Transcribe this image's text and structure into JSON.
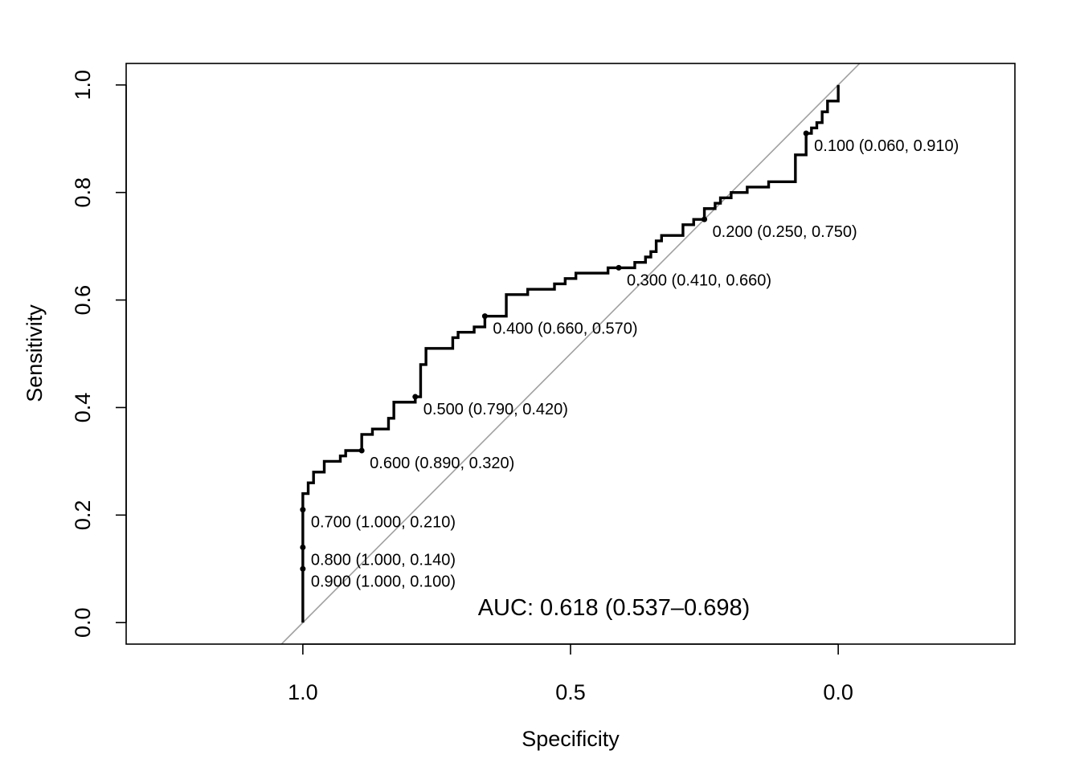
{
  "chart_data": {
    "type": "line",
    "title": "",
    "xlabel": "Specificity",
    "ylabel": "Sensitivity",
    "xlim": [
      1.33,
      -0.33
    ],
    "ylim": [
      -0.04,
      1.04
    ],
    "x_reversed": true,
    "x_ticks": [
      1.0,
      0.5,
      0.0
    ],
    "x_tick_labels": [
      "1.0",
      "0.5",
      "0.0"
    ],
    "y_ticks": [
      0.0,
      0.2,
      0.4,
      0.6,
      0.8,
      1.0
    ],
    "y_tick_labels": [
      "0.0",
      "0.2",
      "0.4",
      "0.6",
      "0.8",
      "1.0"
    ],
    "grid": false,
    "legend": "none",
    "colors": {
      "curve": "#000000",
      "reference": "#a0a0a0"
    },
    "reference_line": {
      "from": [
        1.0,
        0.0
      ],
      "to": [
        0.0,
        1.0
      ]
    },
    "series": [
      {
        "specificity": [
          1.0,
          1.0,
          0.99,
          0.99,
          0.98,
          0.98,
          0.96,
          0.96,
          0.93,
          0.93,
          0.92,
          0.92,
          0.89,
          0.89,
          0.87,
          0.87,
          0.84,
          0.84,
          0.83,
          0.83,
          0.79,
          0.79,
          0.78,
          0.78,
          0.77,
          0.77,
          0.72,
          0.72,
          0.71,
          0.71,
          0.68,
          0.68,
          0.66,
          0.66,
          0.62,
          0.62,
          0.58,
          0.58,
          0.53,
          0.53,
          0.51,
          0.51,
          0.49,
          0.49,
          0.43,
          0.43,
          0.38,
          0.38,
          0.36,
          0.36,
          0.35,
          0.35,
          0.34,
          0.34,
          0.33,
          0.33,
          0.29,
          0.29,
          0.27,
          0.27,
          0.25,
          0.25,
          0.23,
          0.23,
          0.22,
          0.22,
          0.2,
          0.2,
          0.17,
          0.17,
          0.13,
          0.13,
          0.08,
          0.08,
          0.06,
          0.06,
          0.05,
          0.05,
          0.04,
          0.04,
          0.03,
          0.03,
          0.02,
          0.02,
          0.0,
          0.0
        ],
        "sensitivity": [
          0.0,
          0.24,
          0.24,
          0.26,
          0.26,
          0.28,
          0.28,
          0.3,
          0.3,
          0.31,
          0.31,
          0.32,
          0.32,
          0.35,
          0.35,
          0.36,
          0.36,
          0.38,
          0.38,
          0.41,
          0.41,
          0.42,
          0.42,
          0.48,
          0.48,
          0.51,
          0.51,
          0.53,
          0.53,
          0.54,
          0.54,
          0.55,
          0.55,
          0.57,
          0.57,
          0.61,
          0.61,
          0.62,
          0.62,
          0.63,
          0.63,
          0.64,
          0.64,
          0.65,
          0.65,
          0.66,
          0.66,
          0.67,
          0.67,
          0.68,
          0.68,
          0.69,
          0.69,
          0.71,
          0.71,
          0.72,
          0.72,
          0.74,
          0.74,
          0.75,
          0.75,
          0.77,
          0.77,
          0.78,
          0.78,
          0.79,
          0.79,
          0.8,
          0.8,
          0.81,
          0.81,
          0.82,
          0.82,
          0.87,
          0.87,
          0.91,
          0.91,
          0.92,
          0.92,
          0.93,
          0.93,
          0.95,
          0.95,
          0.97,
          0.97,
          1.0
        ]
      }
    ],
    "thresholds": [
      {
        "label": "0.100 (0.060, 0.910)",
        "specificity": 0.06,
        "sensitivity": 0.91
      },
      {
        "label": "0.200 (0.250, 0.750)",
        "specificity": 0.25,
        "sensitivity": 0.75
      },
      {
        "label": "0.300 (0.410, 0.660)",
        "specificity": 0.41,
        "sensitivity": 0.66
      },
      {
        "label": "0.400 (0.660, 0.570)",
        "specificity": 0.66,
        "sensitivity": 0.57
      },
      {
        "label": "0.500 (0.790, 0.420)",
        "specificity": 0.79,
        "sensitivity": 0.42
      },
      {
        "label": "0.600 (0.890, 0.320)",
        "specificity": 0.89,
        "sensitivity": 0.32
      },
      {
        "label": "0.700 (1.000, 0.210)",
        "specificity": 1.0,
        "sensitivity": 0.21
      },
      {
        "label": "0.800 (1.000, 0.140)",
        "specificity": 1.0,
        "sensitivity": 0.14
      },
      {
        "label": "0.900 (1.000, 0.100)",
        "specificity": 1.0,
        "sensitivity": 0.1
      }
    ],
    "annotation": {
      "text": "AUC: 0.618 (0.537–0.698)",
      "specificity": 0.5,
      "sensitivity": 0.03
    }
  }
}
